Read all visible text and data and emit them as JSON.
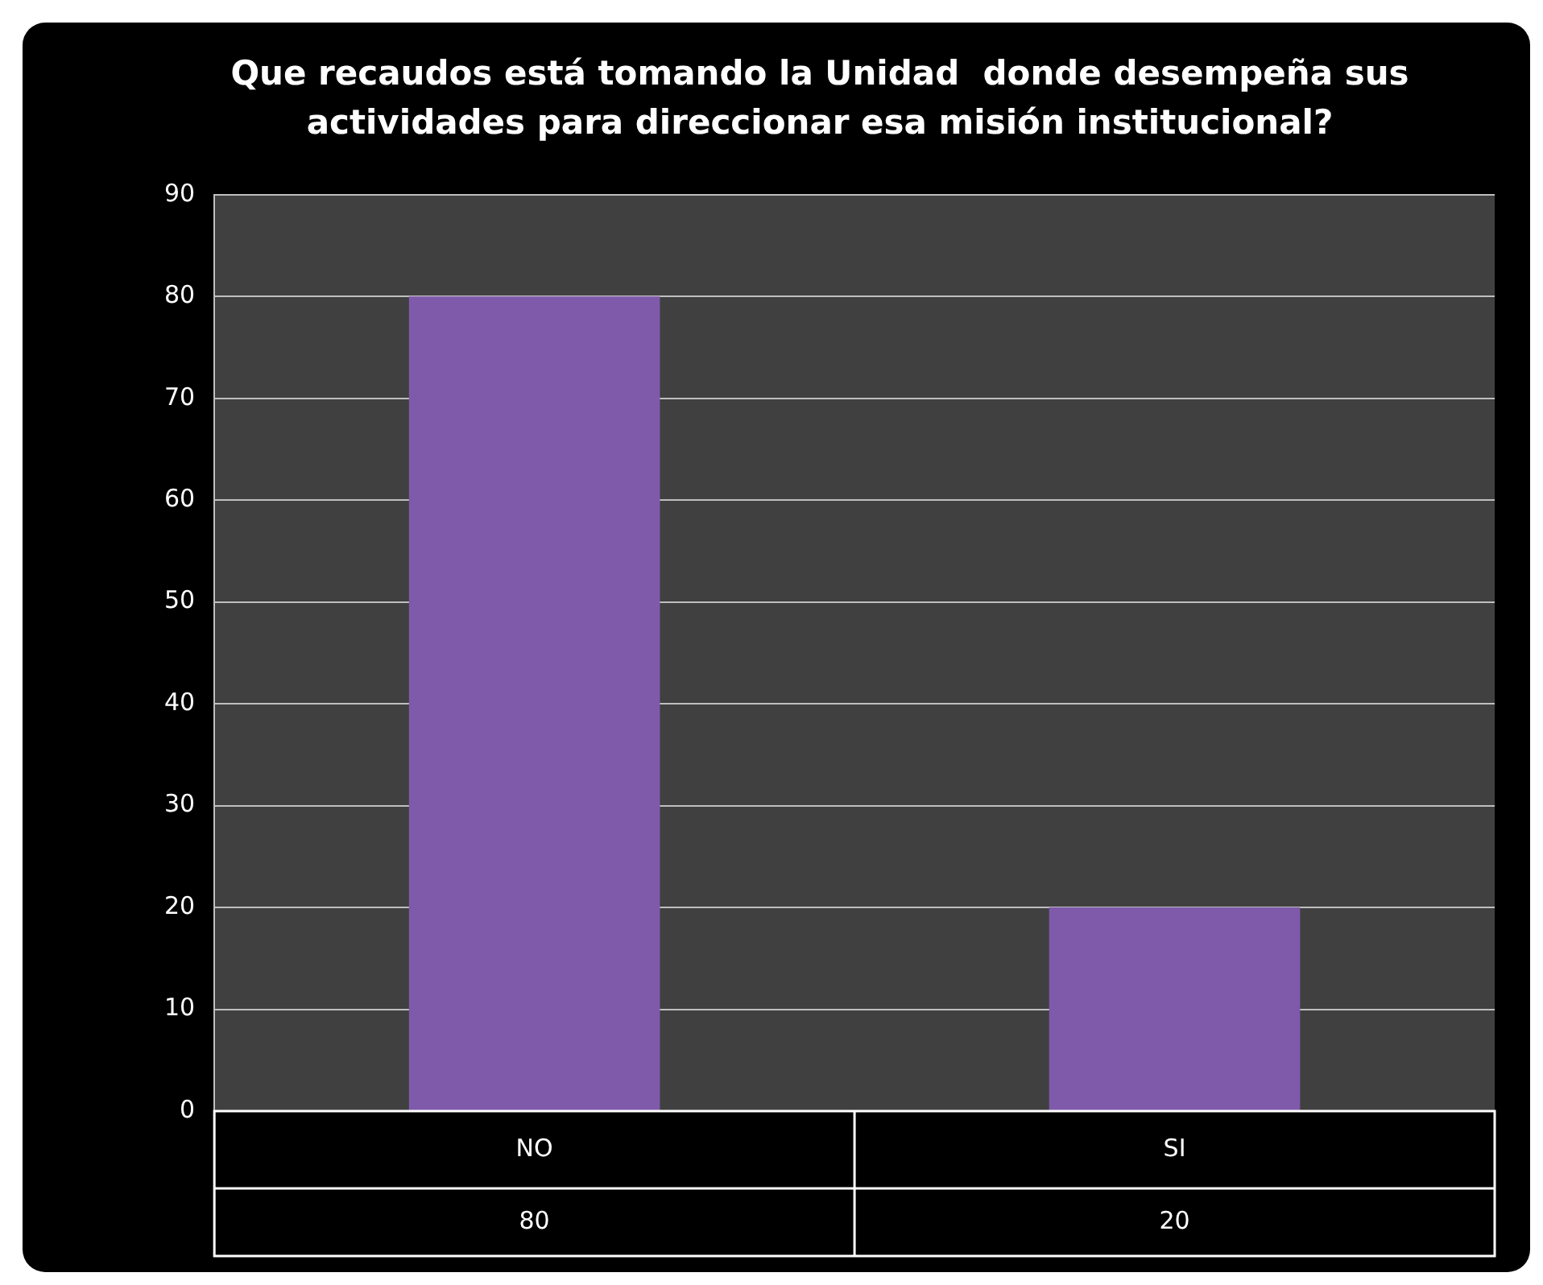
{
  "chart_data": {
    "type": "bar",
    "title": "Que recaudos está tomando la Unidad  donde desempeña sus actividades para direccionar esa misión institucional?",
    "categories": [
      "NO",
      "SI"
    ],
    "values": [
      80,
      20
    ],
    "color": "#7f5aab",
    "ylim": [
      0,
      90
    ],
    "yticks": [
      0,
      10,
      20,
      30,
      40,
      50,
      60,
      70,
      80,
      90
    ],
    "grid": "y",
    "legend": false,
    "data_labels": true
  }
}
